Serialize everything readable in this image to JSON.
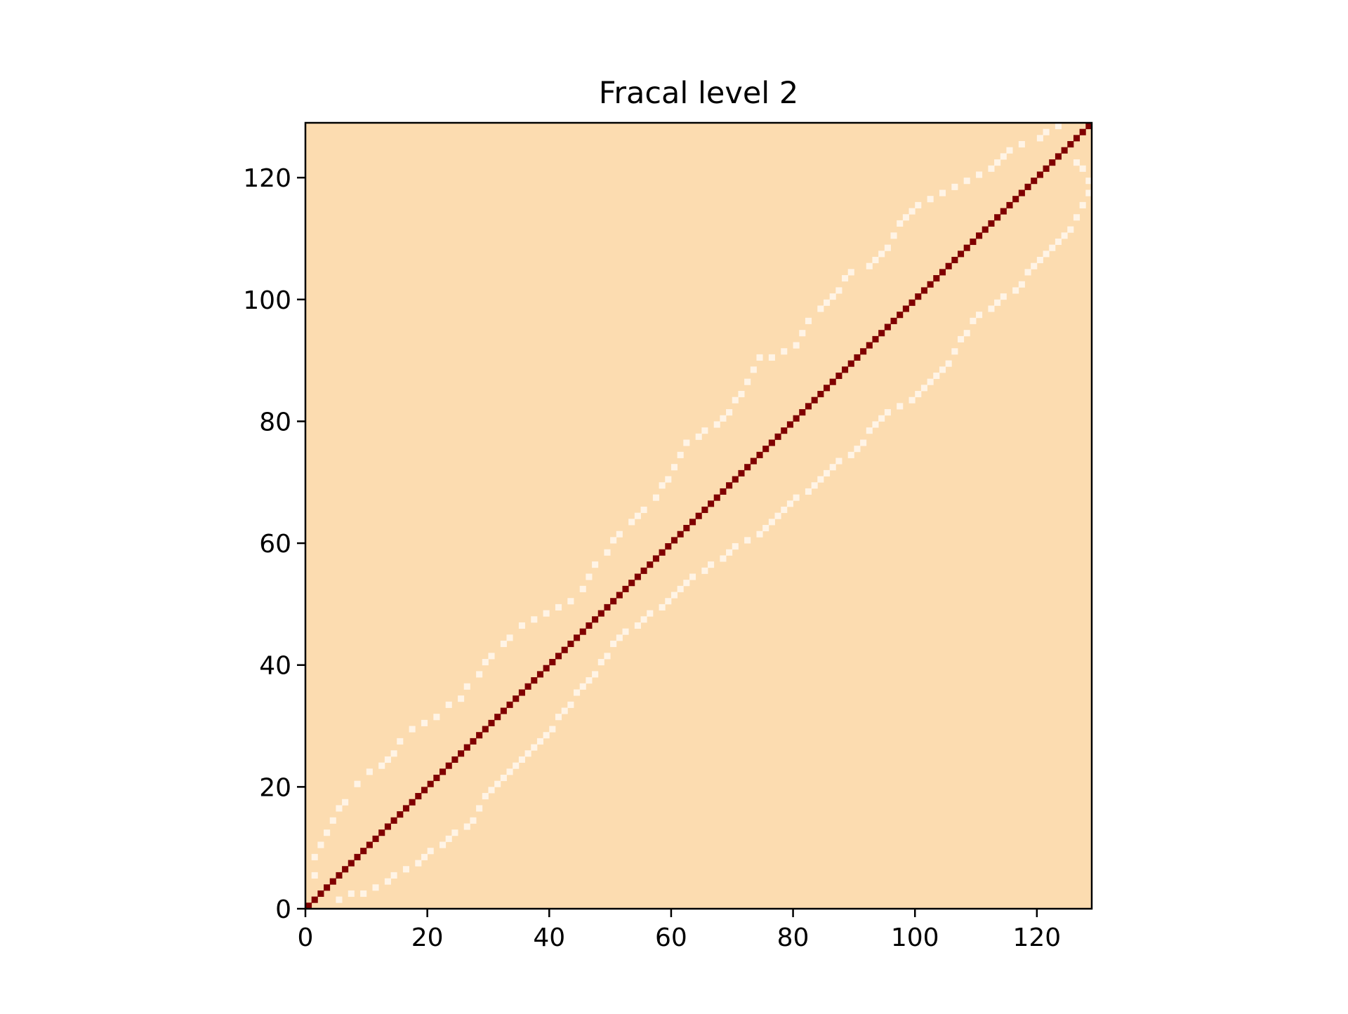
{
  "chart_data": {
    "type": "heatmap",
    "title": "Fracal level 2",
    "xlabel": "",
    "ylabel": "",
    "grid_size": 129,
    "xlim": [
      0,
      129
    ],
    "ylim": [
      0,
      129
    ],
    "x_ticks": [
      0,
      20,
      40,
      60,
      80,
      100,
      120
    ],
    "y_ticks": [
      0,
      20,
      40,
      60,
      80,
      100,
      120
    ],
    "grid": false,
    "colormap": "OrRd",
    "colors": {
      "background": "#fcdcb0",
      "diagonal": "#800000",
      "band": "#fff4e6",
      "axes": "#000000"
    },
    "diagonal": {
      "from": 0,
      "to": 128,
      "description": "cells where x == y"
    },
    "upper_band_points": [
      [
        1,
        5
      ],
      [
        1,
        8
      ],
      [
        2,
        10
      ],
      [
        3,
        12
      ],
      [
        4,
        14
      ],
      [
        5,
        16
      ],
      [
        6,
        17
      ],
      [
        8,
        20
      ],
      [
        10,
        22
      ],
      [
        12,
        23
      ],
      [
        13,
        24
      ],
      [
        14,
        25
      ],
      [
        15,
        27
      ],
      [
        17,
        29
      ],
      [
        19,
        30
      ],
      [
        21,
        31
      ],
      [
        23,
        33
      ],
      [
        25,
        34
      ],
      [
        26,
        36
      ],
      [
        28,
        38
      ],
      [
        29,
        40
      ],
      [
        30,
        41
      ],
      [
        32,
        43
      ],
      [
        33,
        44
      ],
      [
        35,
        46
      ],
      [
        37,
        47
      ],
      [
        39,
        48
      ],
      [
        41,
        49
      ],
      [
        43,
        50
      ],
      [
        45,
        52
      ],
      [
        46,
        54
      ],
      [
        47,
        56
      ],
      [
        49,
        58
      ],
      [
        50,
        60
      ],
      [
        51,
        61
      ],
      [
        53,
        63
      ],
      [
        54,
        64
      ],
      [
        55,
        65
      ],
      [
        57,
        67
      ],
      [
        58,
        69
      ],
      [
        59,
        70
      ],
      [
        60,
        72
      ],
      [
        61,
        74
      ],
      [
        62,
        76
      ],
      [
        64,
        77
      ],
      [
        65,
        78
      ],
      [
        67,
        79
      ],
      [
        68,
        80
      ],
      [
        69,
        81
      ],
      [
        70,
        83
      ],
      [
        71,
        84
      ],
      [
        72,
        86
      ],
      [
        73,
        88
      ],
      [
        74,
        90
      ],
      [
        76,
        90
      ],
      [
        78,
        91
      ],
      [
        80,
        92
      ],
      [
        81,
        94
      ],
      [
        82,
        96
      ],
      [
        84,
        98
      ],
      [
        85,
        99
      ],
      [
        86,
        100
      ],
      [
        87,
        101
      ],
      [
        88,
        103
      ],
      [
        89,
        104
      ],
      [
        92,
        105
      ],
      [
        93,
        106
      ],
      [
        94,
        107
      ],
      [
        95,
        108
      ],
      [
        96,
        110
      ],
      [
        97,
        112
      ],
      [
        98,
        113
      ],
      [
        99,
        114
      ],
      [
        100,
        115
      ],
      [
        102,
        116
      ],
      [
        104,
        117
      ],
      [
        106,
        118
      ],
      [
        108,
        119
      ],
      [
        110,
        120
      ],
      [
        112,
        121
      ],
      [
        113,
        122
      ],
      [
        114,
        123
      ],
      [
        115,
        124
      ],
      [
        117,
        125
      ],
      [
        120,
        126
      ],
      [
        121,
        127
      ],
      [
        123,
        128
      ]
    ],
    "lower_band_points": [
      [
        5,
        1
      ],
      [
        7,
        2
      ],
      [
        9,
        2
      ],
      [
        11,
        3
      ],
      [
        13,
        4
      ],
      [
        14,
        5
      ],
      [
        16,
        6
      ],
      [
        18,
        7
      ],
      [
        19,
        8
      ],
      [
        20,
        9
      ],
      [
        22,
        10
      ],
      [
        23,
        11
      ],
      [
        24,
        12
      ],
      [
        26,
        13
      ],
      [
        27,
        14
      ],
      [
        28,
        16
      ],
      [
        29,
        18
      ],
      [
        30,
        19
      ],
      [
        31,
        20
      ],
      [
        32,
        21
      ],
      [
        33,
        22
      ],
      [
        34,
        23
      ],
      [
        35,
        24
      ],
      [
        36,
        25
      ],
      [
        37,
        26
      ],
      [
        38,
        27
      ],
      [
        39,
        28
      ],
      [
        40,
        29
      ],
      [
        41,
        31
      ],
      [
        42,
        32
      ],
      [
        43,
        33
      ],
      [
        44,
        35
      ],
      [
        45,
        36
      ],
      [
        46,
        37
      ],
      [
        47,
        38
      ],
      [
        48,
        40
      ],
      [
        49,
        41
      ],
      [
        50,
        43
      ],
      [
        51,
        44
      ],
      [
        52,
        45
      ],
      [
        54,
        46
      ],
      [
        55,
        47
      ],
      [
        56,
        48
      ],
      [
        58,
        49
      ],
      [
        59,
        50
      ],
      [
        60,
        51
      ],
      [
        61,
        52
      ],
      [
        62,
        53
      ],
      [
        63,
        54
      ],
      [
        65,
        55
      ],
      [
        66,
        56
      ],
      [
        68,
        57
      ],
      [
        69,
        58
      ],
      [
        70,
        59
      ],
      [
        72,
        60
      ],
      [
        74,
        61
      ],
      [
        75,
        62
      ],
      [
        76,
        63
      ],
      [
        77,
        64
      ],
      [
        78,
        65
      ],
      [
        79,
        66
      ],
      [
        80,
        67
      ],
      [
        82,
        68
      ],
      [
        83,
        69
      ],
      [
        84,
        70
      ],
      [
        85,
        71
      ],
      [
        86,
        72
      ],
      [
        87,
        73
      ],
      [
        89,
        74
      ],
      [
        90,
        75
      ],
      [
        91,
        76
      ],
      [
        92,
        78
      ],
      [
        93,
        79
      ],
      [
        94,
        80
      ],
      [
        95,
        81
      ],
      [
        97,
        82
      ],
      [
        99,
        83
      ],
      [
        100,
        84
      ],
      [
        101,
        85
      ],
      [
        102,
        86
      ],
      [
        103,
        87
      ],
      [
        104,
        88
      ],
      [
        105,
        89
      ],
      [
        106,
        91
      ],
      [
        107,
        93
      ],
      [
        108,
        94
      ],
      [
        109,
        96
      ],
      [
        110,
        97
      ],
      [
        112,
        98
      ],
      [
        113,
        99
      ],
      [
        114,
        100
      ],
      [
        116,
        101
      ],
      [
        117,
        102
      ],
      [
        118,
        104
      ],
      [
        119,
        105
      ],
      [
        120,
        106
      ],
      [
        121,
        107
      ],
      [
        122,
        108
      ],
      [
        123,
        109
      ],
      [
        124,
        110
      ],
      [
        125,
        111
      ],
      [
        126,
        113
      ],
      [
        127,
        115
      ],
      [
        128,
        117
      ],
      [
        128,
        119
      ],
      [
        127,
        121
      ],
      [
        126,
        122
      ]
    ]
  }
}
